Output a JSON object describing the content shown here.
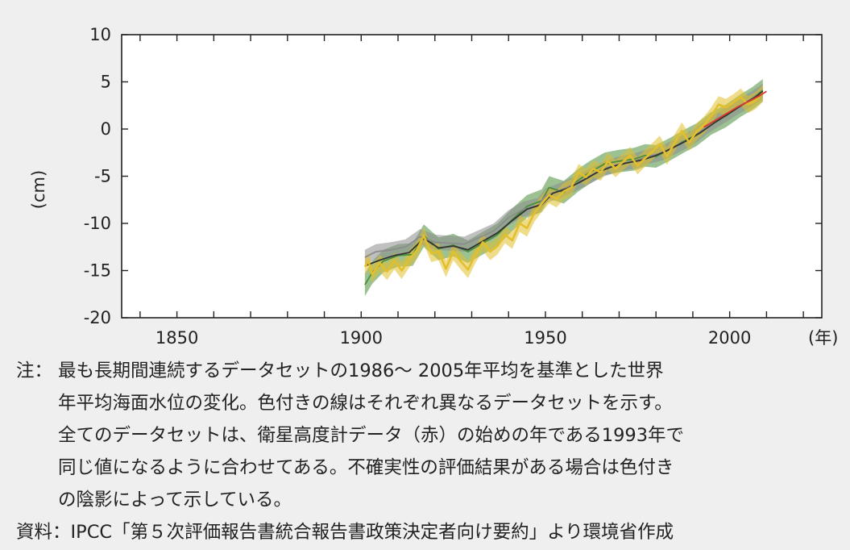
{
  "chart_data": {
    "type": "line",
    "ylabel": "(cm)",
    "x_unit_label": "(年)",
    "xlim": [
      1835,
      2025
    ],
    "ylim": [
      -20,
      10
    ],
    "x_ticks": [
      "1850",
      "1900",
      "1950",
      "2000"
    ],
    "y_ticks": [
      "10",
      "5",
      "0",
      "-5",
      "-10",
      "-15",
      "-20"
    ],
    "series": [
      {
        "color": "#4a8f3c",
        "points": [
          [
            1901,
            -16.5
          ],
          [
            1903,
            -15.2
          ],
          [
            1906,
            -14.0
          ],
          [
            1910,
            -13.4
          ],
          [
            1914,
            -13.3
          ],
          [
            1917,
            -11.3
          ],
          [
            1921,
            -12.7
          ],
          [
            1925,
            -12.3
          ],
          [
            1929,
            -13.0
          ],
          [
            1933,
            -12.1
          ],
          [
            1937,
            -11.2
          ],
          [
            1941,
            -9.6
          ],
          [
            1945,
            -8.2
          ],
          [
            1949,
            -7.6
          ],
          [
            1951,
            -6.2
          ],
          [
            1955,
            -6.7
          ],
          [
            1959,
            -5.4
          ],
          [
            1962,
            -4.6
          ],
          [
            1966,
            -3.7
          ],
          [
            1970,
            -3.4
          ],
          [
            1974,
            -3.2
          ],
          [
            1977,
            -2.8
          ],
          [
            1980,
            -2.9
          ],
          [
            1984,
            -2.1
          ],
          [
            1988,
            -1.2
          ],
          [
            1991,
            -0.6
          ],
          [
            1995,
            0.6
          ],
          [
            1999,
            1.4
          ],
          [
            2003,
            2.5
          ],
          [
            2006,
            3.2
          ],
          [
            2009,
            4.1
          ]
        ],
        "band": 1.2
      },
      {
        "color": "#8c8c8c",
        "points": [
          [
            1901,
            -13.6
          ],
          [
            1904,
            -13.0
          ],
          [
            1908,
            -12.8
          ],
          [
            1912,
            -12.5
          ],
          [
            1916,
            -11.4
          ],
          [
            1920,
            -12.0
          ],
          [
            1924,
            -12.1
          ],
          [
            1928,
            -12.2
          ],
          [
            1932,
            -11.5
          ],
          [
            1936,
            -10.8
          ],
          [
            1940,
            -9.4
          ],
          [
            1944,
            -8.5
          ],
          [
            1948,
            -8.1
          ],
          [
            1950,
            -7.1
          ],
          [
            1954,
            -6.5
          ],
          [
            1958,
            -5.8
          ],
          [
            1962,
            -5.0
          ],
          [
            1966,
            -4.2
          ],
          [
            1970,
            -3.7
          ],
          [
            1974,
            -3.4
          ],
          [
            1978,
            -2.9
          ],
          [
            1982,
            -2.5
          ],
          [
            1986,
            -1.7
          ],
          [
            1990,
            -0.9
          ],
          [
            1994,
            0.3
          ],
          [
            1998,
            1.3
          ],
          [
            2002,
            2.3
          ],
          [
            2006,
            3.2
          ],
          [
            2009,
            4.0
          ]
        ],
        "band": 0.8
      },
      {
        "color": "#333333",
        "points": [
          [
            1901,
            -14.5
          ],
          [
            1905,
            -13.9
          ],
          [
            1909,
            -13.4
          ],
          [
            1913,
            -13.1
          ],
          [
            1917,
            -11.6
          ],
          [
            1921,
            -12.6
          ],
          [
            1925,
            -12.4
          ],
          [
            1929,
            -12.8
          ],
          [
            1933,
            -11.9
          ],
          [
            1937,
            -11.0
          ],
          [
            1941,
            -9.7
          ],
          [
            1945,
            -8.5
          ],
          [
            1949,
            -8.0
          ],
          [
            1952,
            -6.8
          ],
          [
            1956,
            -6.3
          ],
          [
            1960,
            -5.5
          ],
          [
            1964,
            -4.6
          ],
          [
            1968,
            -4.0
          ],
          [
            1972,
            -3.6
          ],
          [
            1976,
            -3.3
          ],
          [
            1980,
            -2.8
          ],
          [
            1984,
            -2.1
          ],
          [
            1988,
            -1.3
          ],
          [
            1992,
            -0.4
          ],
          [
            1996,
            0.7
          ],
          [
            2000,
            1.7
          ],
          [
            2004,
            2.7
          ],
          [
            2007,
            3.4
          ],
          [
            2009,
            4.0
          ]
        ]
      },
      {
        "color": "#e2bf2c",
        "points": [
          [
            1901,
            -14.6
          ],
          [
            1902,
            -14.0
          ],
          [
            1903,
            -15.4
          ],
          [
            1905,
            -14.2
          ],
          [
            1907,
            -15.1
          ],
          [
            1909,
            -14.0
          ],
          [
            1911,
            -15.0
          ],
          [
            1913,
            -13.8
          ],
          [
            1915,
            -12.9
          ],
          [
            1917,
            -11.3
          ],
          [
            1919,
            -13.2
          ],
          [
            1921,
            -13.0
          ],
          [
            1923,
            -14.8
          ],
          [
            1925,
            -13.0
          ],
          [
            1927,
            -14.0
          ],
          [
            1929,
            -14.9
          ],
          [
            1931,
            -13.3
          ],
          [
            1933,
            -12.0
          ],
          [
            1935,
            -13.0
          ],
          [
            1937,
            -12.4
          ],
          [
            1939,
            -11.2
          ],
          [
            1941,
            -11.8
          ],
          [
            1943,
            -10.0
          ],
          [
            1945,
            -10.5
          ],
          [
            1947,
            -8.9
          ],
          [
            1949,
            -7.9
          ],
          [
            1951,
            -7.0
          ],
          [
            1953,
            -7.4
          ],
          [
            1955,
            -6.6
          ],
          [
            1957,
            -6.2
          ],
          [
            1959,
            -4.6
          ],
          [
            1961,
            -5.1
          ],
          [
            1963,
            -4.2
          ],
          [
            1965,
            -4.6
          ],
          [
            1967,
            -3.4
          ],
          [
            1969,
            -4.2
          ],
          [
            1971,
            -3.5
          ],
          [
            1973,
            -2.8
          ],
          [
            1975,
            -3.9
          ],
          [
            1977,
            -3.1
          ],
          [
            1979,
            -2.4
          ],
          [
            1981,
            -1.6
          ],
          [
            1983,
            -2.9
          ],
          [
            1985,
            -1.5
          ],
          [
            1987,
            -0.2
          ],
          [
            1989,
            -1.4
          ],
          [
            1991,
            -0.3
          ],
          [
            1993,
            0.4
          ],
          [
            1995,
            1.4
          ],
          [
            1997,
            2.6
          ],
          [
            1999,
            2.3
          ],
          [
            2001,
            2.8
          ],
          [
            2003,
            3.4
          ],
          [
            2005,
            2.6
          ],
          [
            2007,
            3.0
          ],
          [
            2009,
            3.8
          ]
        ],
        "band": 0.9
      },
      {
        "color": "#d9382c",
        "points": [
          [
            1993,
            0.2
          ],
          [
            1996,
            0.9
          ],
          [
            1999,
            1.6
          ],
          [
            2002,
            2.3
          ],
          [
            2005,
            2.9
          ],
          [
            2008,
            3.5
          ],
          [
            2010,
            4.0
          ]
        ]
      }
    ]
  },
  "notes": {
    "note_label": "注：",
    "note_lines": [
      "最も長期間連続するデータセットの1986～ 2005年平均を基準とした世界",
      "年平均海面水位の変化。色付きの線はそれぞれ異なるデータセットを示す。",
      "全てのデータセットは、衛星高度計データ（赤）の始めの年である1993年で",
      "同じ値になるように合わせてある。不確実性の評価結果がある場合は色付き",
      "の陰影によって示している。"
    ],
    "source_line": "資料：IPCC「第５次評価報告書統合報告書政策決定者向け要約」より環境省作成"
  }
}
